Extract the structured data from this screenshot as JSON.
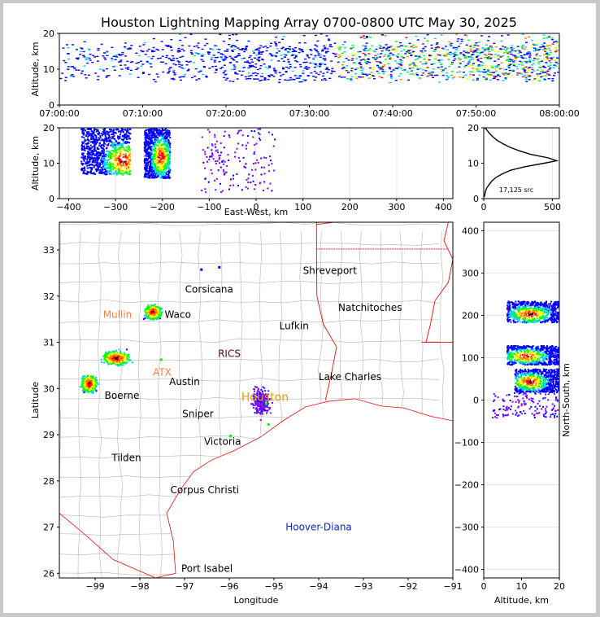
{
  "chart_data": {
    "type": "scatter",
    "title": "Houston Lightning Mapping Array 0700-0800 UTC May 30, 2025",
    "time_panel": {
      "ylabel": "Altitude, km",
      "ylim": [
        0,
        20
      ],
      "yticks": [
        "0",
        "10",
        "20"
      ],
      "xlim": [
        "07:00:00",
        "08:00:00"
      ],
      "xticks": [
        "07:00:00",
        "07:10:00",
        "07:20:00",
        "07:30:00",
        "07:40:00",
        "07:50:00",
        "08:00:00"
      ],
      "altitude_band_km": [
        7,
        17
      ],
      "activity_trend": "increasing"
    },
    "ew_panel": {
      "xlabel": "East-West, km",
      "ylabel": "Altitude, km",
      "xlim": [
        -420,
        420
      ],
      "ylim": [
        0,
        20
      ],
      "xticks": [
        "−400",
        "−300",
        "−200",
        "−100",
        "0",
        "100",
        "200",
        "300",
        "400"
      ],
      "yticks": [
        "0",
        "10",
        "20"
      ],
      "clusters": [
        {
          "x_range": [
            -375,
            -270
          ],
          "alt_range": [
            7,
            20
          ],
          "core_x": -285,
          "core_alt": 11
        },
        {
          "x_range": [
            -240,
            -185
          ],
          "alt_range": [
            6,
            20
          ],
          "core_x": -205,
          "core_alt": 12
        },
        {
          "x_range": [
            -120,
            40
          ],
          "alt_range": [
            2,
            20
          ],
          "scattered": true
        }
      ]
    },
    "histogram_panel": {
      "xlim": [
        0,
        550
      ],
      "ylim": [
        0,
        20
      ],
      "xticks": [
        "0",
        "500"
      ],
      "yticks": [
        "0",
        "10",
        "20"
      ],
      "count_label": "17,125 src",
      "profile": [
        {
          "alt": 0.5,
          "count": 5
        },
        {
          "alt": 2,
          "count": 12
        },
        {
          "alt": 3,
          "count": 22
        },
        {
          "alt": 4,
          "count": 40
        },
        {
          "alt": 5,
          "count": 60
        },
        {
          "alt": 6,
          "count": 90
        },
        {
          "alt": 7,
          "count": 135
        },
        {
          "alt": 8,
          "count": 195
        },
        {
          "alt": 9,
          "count": 300
        },
        {
          "alt": 10,
          "count": 440
        },
        {
          "alt": 10.7,
          "count": 530
        },
        {
          "alt": 11.5,
          "count": 470
        },
        {
          "alt": 12.5,
          "count": 340
        },
        {
          "alt": 13.5,
          "count": 260
        },
        {
          "alt": 14.5,
          "count": 190
        },
        {
          "alt": 15.5,
          "count": 140
        },
        {
          "alt": 16.5,
          "count": 95
        },
        {
          "alt": 17.5,
          "count": 65
        },
        {
          "alt": 18.5,
          "count": 40
        },
        {
          "alt": 19.5,
          "count": 20
        },
        {
          "alt": 20,
          "count": 8
        }
      ]
    },
    "map_panel": {
      "xlabel": "Longitude",
      "ylabel": "Latitude",
      "xlim": [
        -99.8,
        -91.0
      ],
      "ylim": [
        25.9,
        33.6
      ],
      "xticks": [
        "−99",
        "−98",
        "−97",
        "−96",
        "−95",
        "−94",
        "−93",
        "−92",
        "−91"
      ],
      "yticks": [
        "26",
        "27",
        "28",
        "29",
        "30",
        "31",
        "32",
        "33"
      ],
      "cities": [
        {
          "name": "Shreveport",
          "lon": -93.75,
          "lat": 32.55,
          "color": "#000000"
        },
        {
          "name": "Corsicana",
          "lon": -96.45,
          "lat": 32.15,
          "color": "#000000"
        },
        {
          "name": "Mullin",
          "lon": -98.5,
          "lat": 31.6,
          "color": "#f08040"
        },
        {
          "name": "Waco",
          "lon": -97.15,
          "lat": 31.6,
          "color": "#000000"
        },
        {
          "name": "Natchitoches",
          "lon": -92.85,
          "lat": 31.75,
          "color": "#000000"
        },
        {
          "name": "Lufkin",
          "lon": -94.55,
          "lat": 31.35,
          "color": "#000000"
        },
        {
          "name": "RICS",
          "lon": -96.0,
          "lat": 30.75,
          "color": "#600000"
        },
        {
          "name": "ATX",
          "lon": -97.5,
          "lat": 30.35,
          "color": "#f08040"
        },
        {
          "name": "Austin",
          "lon": -97.0,
          "lat": 30.15,
          "color": "#000000"
        },
        {
          "name": "Lake Charles",
          "lon": -93.3,
          "lat": 30.25,
          "color": "#000000"
        },
        {
          "name": "Boerne",
          "lon": -98.4,
          "lat": 29.85,
          "color": "#000000"
        },
        {
          "name": "Houston",
          "lon": -95.2,
          "lat": 29.8,
          "color": "#e0a000"
        },
        {
          "name": "Sniper",
          "lon": -96.7,
          "lat": 29.45,
          "color": "#000000"
        },
        {
          "name": "Victoria",
          "lon": -96.15,
          "lat": 28.85,
          "color": "#000000"
        },
        {
          "name": "Tilden",
          "lon": -98.3,
          "lat": 28.5,
          "color": "#000000"
        },
        {
          "name": "Corpus Christi",
          "lon": -96.55,
          "lat": 27.8,
          "color": "#000000"
        },
        {
          "name": "Hoover-Diana",
          "lon": -94.0,
          "lat": 27.0,
          "color": "#1020d0"
        },
        {
          "name": "Port Isabel",
          "lon": -96.5,
          "lat": 26.1,
          "color": "#000000"
        }
      ],
      "source_clusters": [
        {
          "lon_range": [
            -98.0,
            -97.45
          ],
          "lat_range": [
            31.45,
            31.9
          ]
        },
        {
          "lon_range": [
            -99.0,
            -98.1
          ],
          "lat_range": [
            30.45,
            30.9
          ]
        },
        {
          "lon_range": [
            -99.4,
            -98.9
          ],
          "lat_range": [
            29.85,
            30.4
          ]
        },
        {
          "lon_range": [
            -95.6,
            -95.0
          ],
          "lat_range": [
            29.3,
            30.2
          ],
          "scattered": true
        }
      ]
    },
    "ns_panel": {
      "xlabel": "Altitude, km",
      "ylabel": "North-South, km",
      "xlim": [
        0,
        20
      ],
      "ylim": [
        -420,
        420
      ],
      "xticks": [
        "0",
        "10",
        "20"
      ],
      "yticks": [
        "−400",
        "−300",
        "−200",
        "−100",
        "0",
        "100",
        "200",
        "300",
        "400"
      ],
      "clusters": [
        {
          "ns_range": [
            185,
            235
          ],
          "alt_range": [
            6,
            20
          ],
          "core_ns": 205,
          "core_alt": 12
        },
        {
          "ns_range": [
            85,
            130
          ],
          "alt_range": [
            6,
            20
          ],
          "core_ns": 105,
          "core_alt": 11
        },
        {
          "ns_range": [
            20,
            75
          ],
          "alt_range": [
            8,
            20
          ],
          "core_ns": 45,
          "core_alt": 12
        },
        {
          "ns_range": [
            -40,
            20
          ],
          "alt_range": [
            2,
            20
          ],
          "scattered": true
        }
      ]
    },
    "colors": {
      "scale": [
        "#0000ff",
        "#00d0ff",
        "#00ff00",
        "#ffff00",
        "#ff8000",
        "#ff0000",
        "#000000"
      ],
      "state_border": "#e01010",
      "county_lines": "#b4b4b4",
      "sparse": "#8000ff"
    }
  }
}
